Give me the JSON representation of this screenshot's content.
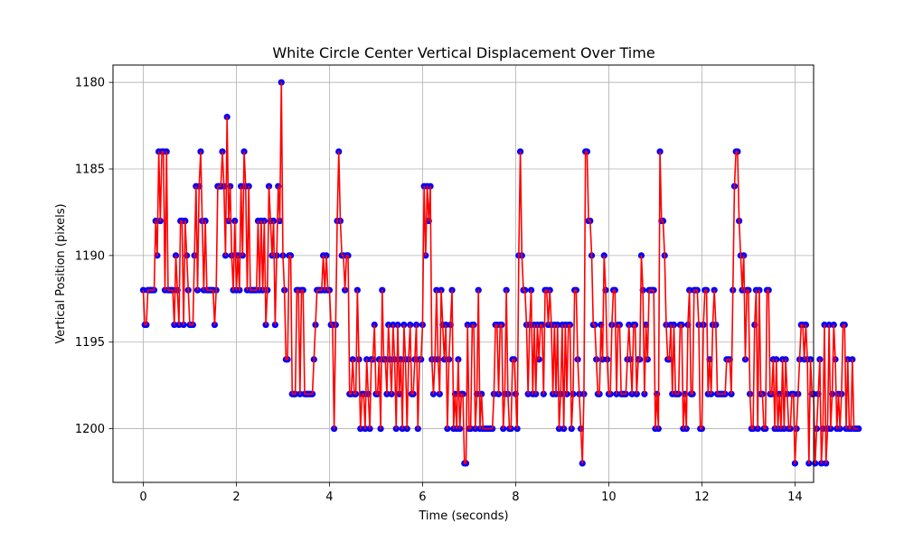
{
  "chart_data": {
    "type": "line",
    "title": "White Circle Center Vertical Displacement Over Time",
    "xlabel": "Time (seconds)",
    "ylabel": "Vertical Position (pixels)",
    "xlim": [
      -0.65,
      14.4
    ],
    "ylim": [
      1203.1,
      1179.0
    ],
    "y_inverted": true,
    "grid": true,
    "x_ticks": [
      0,
      2,
      4,
      6,
      8,
      10,
      12,
      14
    ],
    "x_tick_labels": [
      "0",
      "2",
      "4",
      "6",
      "8",
      "10",
      "12",
      "14"
    ],
    "y_ticks": [
      1180,
      1185,
      1190,
      1195,
      1200
    ],
    "y_tick_labels": [
      "1180",
      "1185",
      "1190",
      "1195",
      "1200"
    ],
    "x_step": 0.033333,
    "series": [
      {
        "line_color": "#ff0000",
        "marker_color": "#0000ff",
        "marker": "circle",
        "y": [
          1192,
          1194,
          1194,
          1192,
          1192,
          1192,
          1192,
          1192,
          1188,
          1190,
          1184,
          1188,
          1184,
          1184,
          1192,
          1184,
          1192,
          1192,
          1192,
          1192,
          1194,
          1190,
          1192,
          1194,
          1188,
          1188,
          1194,
          1188,
          1190,
          1192,
          1194,
          1194,
          1194,
          1190,
          1186,
          1192,
          1186,
          1184,
          1188,
          1192,
          1188,
          1192,
          1192,
          1192,
          1192,
          1192,
          1194,
          1192,
          1186,
          1186,
          1186,
          1184,
          1186,
          1190,
          1182,
          1188,
          1186,
          1190,
          1192,
          1188,
          1192,
          1190,
          1192,
          1186,
          1190,
          1184,
          1186,
          1192,
          1186,
          1192,
          1192,
          1192,
          1192,
          1192,
          1188,
          1192,
          1188,
          1192,
          1188,
          1194,
          1192,
          1186,
          1188,
          1190,
          1188,
          1194,
          1190,
          1186,
          1188,
          1180,
          1190,
          1192,
          1196,
          1196,
          1190,
          1190,
          1198,
          1198,
          1198,
          1192,
          1192,
          1198,
          1192,
          1192,
          1198,
          1198,
          1198,
          1198,
          1198,
          1198,
          1196,
          1194,
          1192,
          1192,
          1192,
          1192,
          1190,
          1192,
          1190,
          1192,
          1192,
          1194,
          1194,
          1200,
          1194,
          1188,
          1184,
          1188,
          1190,
          1190,
          1192,
          1190,
          1190,
          1198,
          1198,
          1196,
          1198,
          1198,
          1192,
          1196,
          1200,
          1198,
          1198,
          1200,
          1196,
          1198,
          1200,
          1196,
          1196,
          1194,
          1198,
          1198,
          1196,
          1200,
          1192,
          1196,
          1196,
          1198,
          1194,
          1196,
          1198,
          1194,
          1196,
          1200,
          1194,
          1198,
          1196,
          1200,
          1194,
          1196,
          1200,
          1196,
          1194,
          1198,
          1198,
          1196,
          1194,
          1200,
          1196,
          1196,
          1194,
          1186,
          1190,
          1186,
          1188,
          1186,
          1196,
          1198,
          1196,
          1192,
          1196,
          1198,
          1192,
          1194,
          1196,
          1194,
          1200,
          1196,
          1194,
          1192,
          1200,
          1198,
          1200,
          1196,
          1200,
          1198,
          1198,
          1202,
          1202,
          1194,
          1200,
          1200,
          1194,
          1194,
          1200,
          1198,
          1192,
          1200,
          1198,
          1200,
          1200,
          1200,
          1200,
          1200,
          1200,
          1200,
          1198,
          1194,
          1194,
          1198,
          1194,
          1194,
          1200,
          1198,
          1192,
          1198,
          1200,
          1200,
          1196,
          1196,
          1198,
          1200,
          1190,
          1184,
          1190,
          1192,
          1192,
          1194,
          1198,
          1194,
          1192,
          1198,
          1194,
          1198,
          1194,
          1196,
          1194,
          1194,
          1198,
          1192,
          1192,
          1194,
          1192,
          1194,
          1198,
          1194,
          1198,
          1194,
          1200,
          1198,
          1194,
          1200,
          1194,
          1198,
          1194,
          1194,
          1200,
          1198,
          1192,
          1192,
          1196,
          1198,
          1200,
          1202,
          1198,
          1184,
          1184,
          1188,
          1188,
          1190,
          1194,
          1194,
          1196,
          1198,
          1198,
          1194,
          1196,
          1190,
          1192,
          1196,
          1198,
          1198,
          1194,
          1192,
          1192,
          1198,
          1194,
          1194,
          1198,
          1198,
          1198,
          1198,
          1196,
          1194,
          1196,
          1198,
          1194,
          1194,
          1198,
          1196,
          1196,
          1190,
          1192,
          1198,
          1194,
          1196,
          1192,
          1192,
          1192,
          1192,
          1200,
          1198,
          1200,
          1184,
          1188,
          1188,
          1190,
          1194,
          1196,
          1196,
          1194,
          1198,
          1194,
          1198,
          1198,
          1198,
          1194,
          1194,
          1200,
          1198,
          1200,
          1194,
          1192,
          1198,
          1198,
          1192,
          1192,
          1192,
          1194,
          1200,
          1200,
          1194,
          1192,
          1192,
          1198,
          1196,
          1198,
          1194,
          1192,
          1194,
          1198,
          1198,
          1198,
          1198,
          1198,
          1198,
          1196,
          1196,
          1196,
          1198,
          1192,
          1186,
          1184,
          1184,
          1188,
          1190,
          1192,
          1190,
          1196,
          1192,
          1192,
          1198,
          1200,
          1200,
          1194,
          1192,
          1200,
          1192,
          1198,
          1198,
          1200,
          1200,
          1192,
          1192,
          1198,
          1198,
          1196,
          1200,
          1196,
          1200,
          1198,
          1200,
          1196,
          1200,
          1196,
          1198,
          1200,
          1200,
          1198,
          1198,
          1202,
          1200,
          1198,
          1196,
          1194,
          1194,
          1196,
          1194,
          1196,
          1202,
          1196,
          1198,
          1198,
          1202,
          1200,
          1198,
          1196,
          1202,
          1200,
          1194,
          1202,
          1200,
          1194,
          1200,
          1198,
          1194,
          1196,
          1200,
          1198,
          1200,
          1198,
          1194,
          1194,
          1200,
          1196,
          1200,
          1200,
          1196,
          1200,
          1200,
          1200,
          1200
        ]
      }
    ]
  }
}
